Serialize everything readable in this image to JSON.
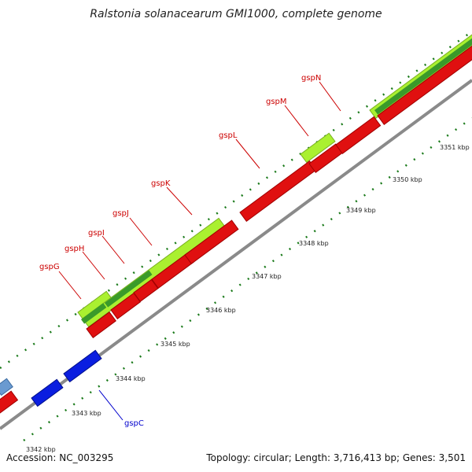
{
  "title": "Ralstonia solanacearum GMI1000, complete genome",
  "footer": {
    "accession": "Accession: NC_003295",
    "summary": "Topology: circular; Length: 3,716,413 bp; Genes: 3,501"
  },
  "colors": {
    "backbone": "#8a8a8a",
    "cds_forward": "#e01010",
    "cds_reverse": "#0a1ee0",
    "rna_light": "#aaf030",
    "rna_dark": "#3a9a2a",
    "label_forward": "#cc0000",
    "label_reverse": "#0000cc",
    "tick": "#1a7a1a"
  },
  "genes": [
    {
      "name": "gspC",
      "strand": "reverse"
    },
    {
      "name": "gspG",
      "strand": "forward"
    },
    {
      "name": "gspH",
      "strand": "forward"
    },
    {
      "name": "gspI",
      "strand": "forward"
    },
    {
      "name": "gspJ",
      "strand": "forward"
    },
    {
      "name": "gspK",
      "strand": "forward"
    },
    {
      "name": "gspL",
      "strand": "forward"
    },
    {
      "name": "gspM",
      "strand": "forward"
    },
    {
      "name": "gspN",
      "strand": "forward"
    }
  ],
  "scale_labels": [
    "3342 kbp",
    "3343 kbp",
    "3344 kbp",
    "3345 kbp",
    "3346 kbp",
    "3347 kbp",
    "3348 kbp",
    "3349 kbp",
    "3350 kbp",
    "3351 kbp"
  ]
}
